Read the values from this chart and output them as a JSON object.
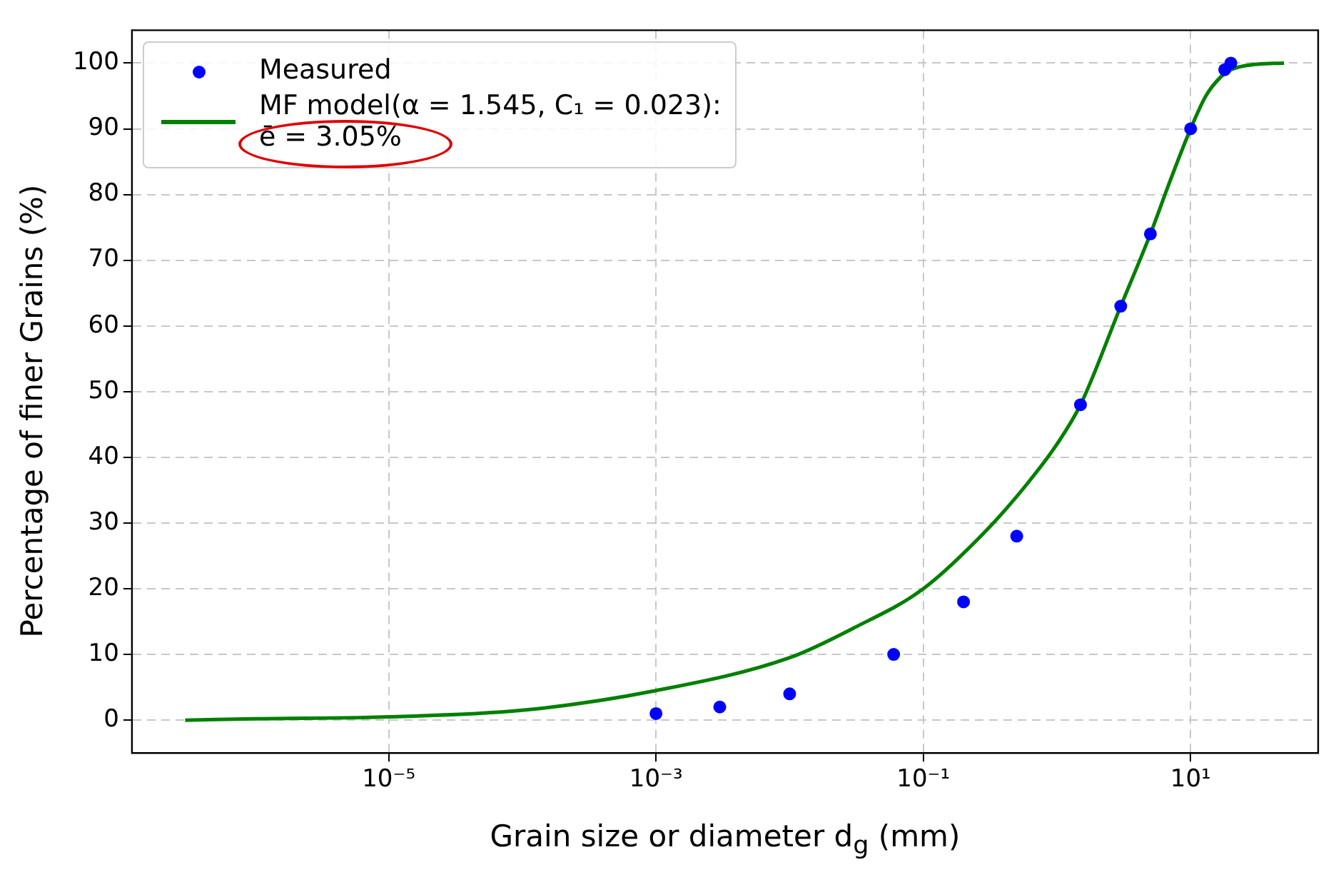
{
  "chart_data": {
    "type": "scatter",
    "xlabel": "Grain size or diameter d$_{g}$ (mm)",
    "ylabel": "Percentage of finer Grains (%)",
    "log": "x",
    "grid": true,
    "legend": "top left",
    "xlim": [
      1.2e-07,
      90
    ],
    "ylim": [
      -5,
      105
    ],
    "xticks": [
      {
        "value": 1e-05,
        "label": "10⁻⁵"
      },
      {
        "value": 0.001,
        "label": "10⁻³"
      },
      {
        "value": 0.1,
        "label": "10⁻¹"
      },
      {
        "value": 10,
        "label": "10¹"
      }
    ],
    "yticks": [
      0,
      10,
      20,
      30,
      40,
      50,
      60,
      70,
      80,
      90,
      100
    ],
    "series": [
      {
        "name": "Measured",
        "marker": "circle",
        "color": "#0000ff",
        "x": [
          0.001,
          0.003,
          0.01,
          0.06,
          0.2,
          0.5,
          1.5,
          3,
          5,
          10,
          18,
          20
        ],
        "values": [
          1,
          2,
          4,
          10,
          18,
          28,
          48,
          63,
          74,
          90,
          99,
          100
        ]
      },
      {
        "name": "MF model(α = 1.545, C₁ = 0.023):\nē = 3.05%",
        "type": "line",
        "marker": "none",
        "color": "#008000",
        "x": [
          3e-07,
          1e-06,
          1e-05,
          0.0001,
          0.001,
          0.01,
          0.03,
          0.1,
          0.3,
          0.6,
          1,
          1.5,
          3,
          5,
          7,
          10,
          13,
          17,
          20,
          30,
          50
        ],
        "values": [
          0,
          0.2,
          0.5,
          1.5,
          4.5,
          9.5,
          14,
          20,
          29,
          36,
          42,
          48,
          63,
          74,
          82,
          90,
          95,
          98,
          99,
          99.8,
          100
        ]
      }
    ]
  }
}
